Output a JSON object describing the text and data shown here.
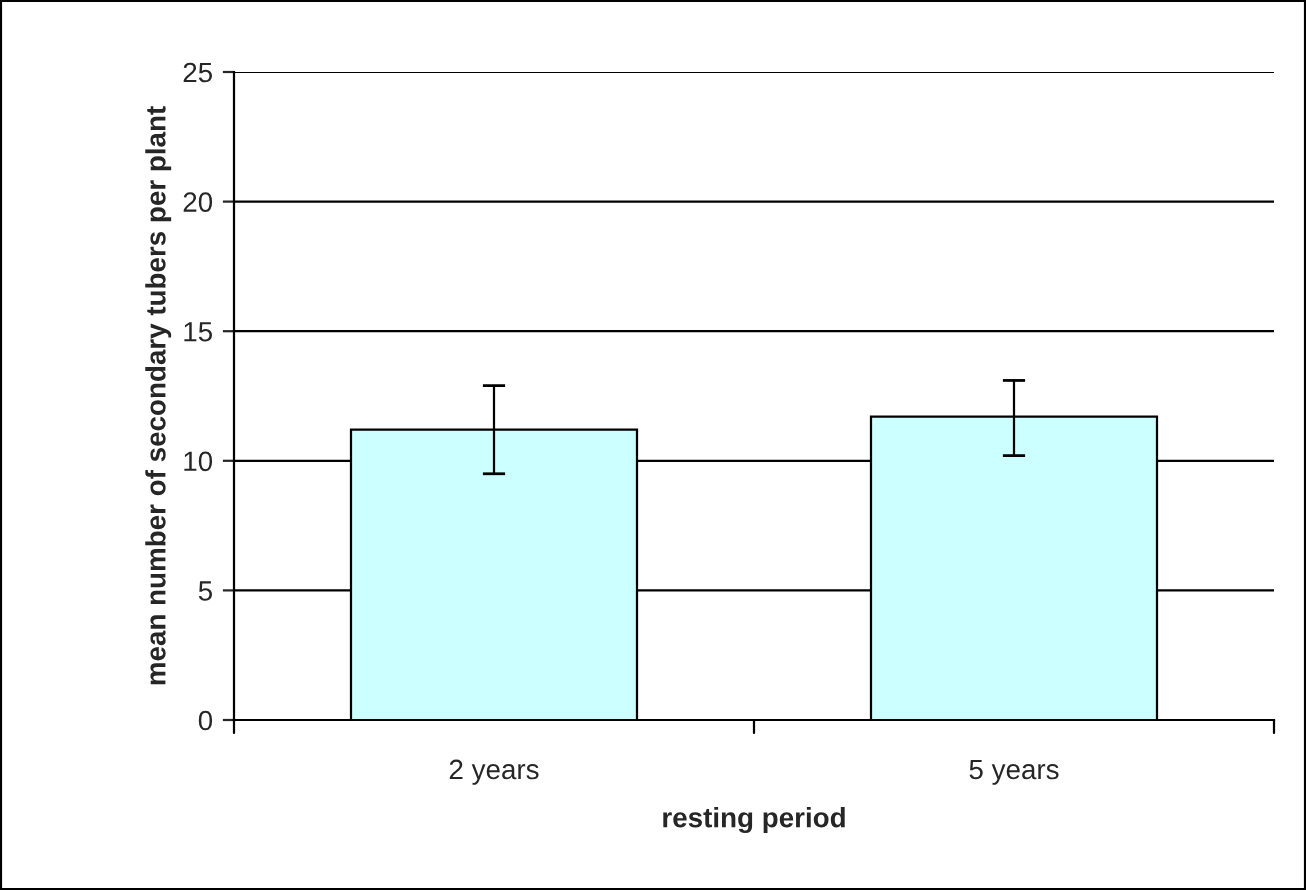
{
  "chart_data": {
    "type": "bar",
    "xlabel": "resting period",
    "ylabel": "mean number of secondary tubers per plant",
    "categories": [
      "2 years",
      "5 years"
    ],
    "values": [
      11.2,
      11.7
    ],
    "errors": [
      [
        9.5,
        12.9
      ],
      [
        10.2,
        13.1
      ]
    ],
    "color": "#ccffff",
    "ylim": [
      0,
      25
    ],
    "yticks": [
      0,
      5,
      10,
      15,
      20,
      25
    ],
    "grid": "y"
  }
}
